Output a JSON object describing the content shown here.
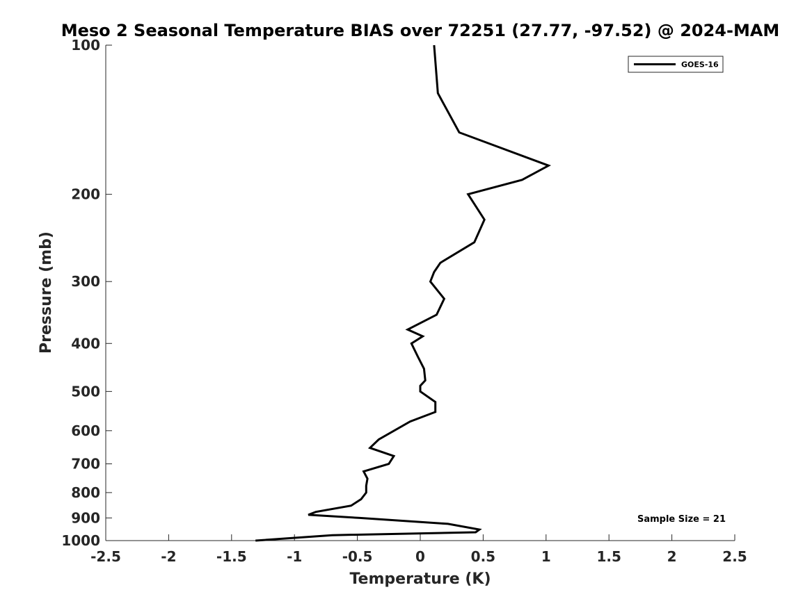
{
  "chart_data": {
    "type": "line",
    "title": "Meso 2 Seasonal Temperature BIAS over 72251 (27.77, -97.52) @ 2024-MAM",
    "xlabel": "Temperature (K)",
    "ylabel": "Pressure (mb)",
    "xlim": [
      -2.5,
      2.5
    ],
    "ylim": [
      100,
      1000
    ],
    "y_scale": "log",
    "y_reversed": true,
    "grid": false,
    "legend_position": "top-right",
    "x_ticks": [
      -2.5,
      -2,
      -1.5,
      -1,
      -0.5,
      0,
      0.5,
      1,
      1.5,
      2,
      2.5
    ],
    "x_tick_labels": [
      "-2.5",
      "-2",
      "-1.5",
      "-1",
      "-0.5",
      "0",
      "0.5",
      "1",
      "1.5",
      "2",
      "2.5"
    ],
    "y_ticks": [
      100,
      200,
      300,
      400,
      500,
      600,
      700,
      800,
      900,
      1000
    ],
    "y_tick_labels": [
      "100",
      "200",
      "300",
      "400",
      "500",
      "600",
      "700",
      "800",
      "900",
      "1000"
    ],
    "series": [
      {
        "name": "GOES-16",
        "color": "#000000",
        "points": [
          {
            "x": 0.11,
            "y": 100
          },
          {
            "x": 0.14,
            "y": 125
          },
          {
            "x": 0.31,
            "y": 150
          },
          {
            "x": 1.02,
            "y": 175
          },
          {
            "x": 0.81,
            "y": 187
          },
          {
            "x": 0.38,
            "y": 200
          },
          {
            "x": 0.51,
            "y": 225
          },
          {
            "x": 0.43,
            "y": 250
          },
          {
            "x": 0.16,
            "y": 275
          },
          {
            "x": 0.11,
            "y": 287
          },
          {
            "x": 0.08,
            "y": 300
          },
          {
            "x": 0.19,
            "y": 325
          },
          {
            "x": 0.13,
            "y": 350
          },
          {
            "x": -0.1,
            "y": 375
          },
          {
            "x": 0.02,
            "y": 387
          },
          {
            "x": -0.07,
            "y": 400
          },
          {
            "x": -0.02,
            "y": 425
          },
          {
            "x": 0.03,
            "y": 450
          },
          {
            "x": 0.04,
            "y": 475
          },
          {
            "x": 0.0,
            "y": 487
          },
          {
            "x": 0.0,
            "y": 500
          },
          {
            "x": 0.12,
            "y": 525
          },
          {
            "x": 0.12,
            "y": 550
          },
          {
            "x": -0.08,
            "y": 575
          },
          {
            "x": -0.33,
            "y": 625
          },
          {
            "x": -0.4,
            "y": 650
          },
          {
            "x": -0.21,
            "y": 675
          },
          {
            "x": -0.25,
            "y": 700
          },
          {
            "x": -0.45,
            "y": 725
          },
          {
            "x": -0.42,
            "y": 750
          },
          {
            "x": -0.43,
            "y": 775
          },
          {
            "x": -0.43,
            "y": 800
          },
          {
            "x": -0.47,
            "y": 825
          },
          {
            "x": -0.55,
            "y": 850
          },
          {
            "x": -0.83,
            "y": 875
          },
          {
            "x": -0.89,
            "y": 887
          },
          {
            "x": -0.48,
            "y": 900
          },
          {
            "x": 0.22,
            "y": 925
          },
          {
            "x": 0.47,
            "y": 950
          },
          {
            "x": 0.44,
            "y": 962
          },
          {
            "x": -0.7,
            "y": 975
          },
          {
            "x": -1.31,
            "y": 1000
          }
        ]
      }
    ],
    "annotations": [
      {
        "text": "Sample Size = 21",
        "position": "bottom-right"
      }
    ]
  }
}
